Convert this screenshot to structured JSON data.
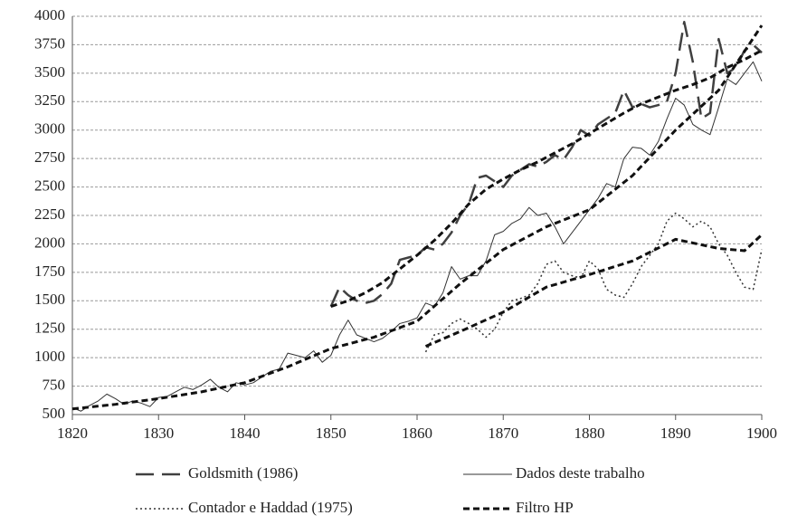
{
  "chart_data": {
    "type": "line",
    "xlim": [
      1820,
      1900
    ],
    "xticks": [
      1820,
      1830,
      1840,
      1850,
      1860,
      1870,
      1880,
      1890,
      1900
    ],
    "ylim": [
      500,
      4000
    ],
    "yticks": [
      500,
      750,
      1000,
      1250,
      1500,
      1750,
      2000,
      2250,
      2500,
      2750,
      3000,
      3250,
      3500,
      3750,
      4000
    ],
    "grid": true,
    "series": [
      {
        "name": "Goldsmith (1986)",
        "color": "#404040",
        "dash": "20 9",
        "width": 2.5,
        "x": [
          1850,
          1851,
          1852,
          1853,
          1854,
          1855,
          1856,
          1857,
          1858,
          1859,
          1860,
          1861,
          1862,
          1863,
          1864,
          1865,
          1866,
          1867,
          1868,
          1869,
          1870,
          1871,
          1872,
          1873,
          1874,
          1875,
          1876,
          1877,
          1878,
          1879,
          1880,
          1881,
          1882,
          1883,
          1884,
          1885,
          1886,
          1887,
          1888,
          1889,
          1890,
          1891,
          1892,
          1893,
          1894,
          1895,
          1896,
          1897,
          1898,
          1899,
          1900
        ],
        "values": [
          1450,
          1620,
          1550,
          1500,
          1480,
          1500,
          1560,
          1650,
          1860,
          1880,
          1900,
          1970,
          1950,
          2000,
          2100,
          2250,
          2350,
          2580,
          2600,
          2550,
          2500,
          2600,
          2650,
          2700,
          2680,
          2720,
          2780,
          2740,
          2850,
          3000,
          2950,
          3050,
          3100,
          3150,
          3350,
          3200,
          3230,
          3200,
          3220,
          3250,
          3500,
          3950,
          3600,
          3100,
          3150,
          3800,
          3500,
          3550,
          3700,
          3750,
          3680
        ]
      },
      {
        "name": "Dados deste trabalho",
        "color": "#333333",
        "dash": "none",
        "width": 1,
        "x": [
          1820,
          1821,
          1822,
          1823,
          1824,
          1825,
          1826,
          1827,
          1828,
          1829,
          1830,
          1831,
          1832,
          1833,
          1834,
          1835,
          1836,
          1837,
          1838,
          1839,
          1840,
          1841,
          1842,
          1843,
          1844,
          1845,
          1846,
          1847,
          1848,
          1849,
          1850,
          1851,
          1852,
          1853,
          1854,
          1855,
          1856,
          1857,
          1858,
          1859,
          1860,
          1861,
          1862,
          1863,
          1864,
          1865,
          1866,
          1867,
          1868,
          1869,
          1870,
          1871,
          1872,
          1873,
          1874,
          1875,
          1876,
          1877,
          1878,
          1879,
          1880,
          1881,
          1882,
          1883,
          1884,
          1885,
          1886,
          1887,
          1888,
          1889,
          1890,
          1891,
          1892,
          1893,
          1894,
          1895,
          1896,
          1897,
          1898,
          1899,
          1900
        ],
        "values": [
          560,
          530,
          580,
          620,
          680,
          640,
          590,
          620,
          600,
          570,
          650,
          660,
          700,
          740,
          720,
          760,
          810,
          740,
          700,
          780,
          760,
          780,
          830,
          880,
          900,
          1040,
          1020,
          1000,
          1060,
          960,
          1020,
          1200,
          1330,
          1200,
          1170,
          1140,
          1170,
          1230,
          1300,
          1320,
          1350,
          1480,
          1450,
          1570,
          1800,
          1690,
          1720,
          1720,
          1850,
          2080,
          2110,
          2180,
          2220,
          2320,
          2250,
          2270,
          2150,
          2000,
          2100,
          2200,
          2300,
          2400,
          2530,
          2500,
          2750,
          2850,
          2840,
          2780,
          2900,
          3100,
          3280,
          3220,
          3050,
          3000,
          2960,
          3200,
          3450,
          3400,
          3500,
          3600,
          3430
        ]
      },
      {
        "name": "Contador e Haddad (1975)",
        "color": "#333333",
        "dash": "2 3",
        "width": 1.5,
        "x": [
          1861,
          1862,
          1863,
          1864,
          1865,
          1866,
          1867,
          1868,
          1869,
          1870,
          1871,
          1872,
          1873,
          1874,
          1875,
          1876,
          1877,
          1878,
          1879,
          1880,
          1881,
          1882,
          1883,
          1884,
          1885,
          1886,
          1887,
          1888,
          1889,
          1890,
          1891,
          1892,
          1893,
          1894,
          1895,
          1896,
          1897,
          1898,
          1899,
          1900
        ],
        "values": [
          1050,
          1200,
          1220,
          1300,
          1340,
          1300,
          1250,
          1180,
          1250,
          1400,
          1500,
          1520,
          1550,
          1650,
          1820,
          1850,
          1750,
          1720,
          1700,
          1850,
          1780,
          1600,
          1550,
          1530,
          1650,
          1800,
          1900,
          2000,
          2200,
          2270,
          2220,
          2150,
          2200,
          2150,
          2000,
          1900,
          1750,
          1620,
          1600,
          1950
        ]
      },
      {
        "name": "Filtro HP",
        "color": "#111111",
        "dash": "7 4",
        "width": 3,
        "x": [
          1850,
          1852,
          1854,
          1856,
          1858,
          1860,
          1862,
          1864,
          1866,
          1868,
          1870,
          1872,
          1874,
          1876,
          1878,
          1880,
          1882,
          1884,
          1886,
          1888,
          1890,
          1892,
          1894,
          1896,
          1898,
          1900
        ],
        "values": [
          1450,
          1500,
          1570,
          1660,
          1780,
          1900,
          2030,
          2180,
          2350,
          2480,
          2570,
          2650,
          2720,
          2800,
          2880,
          2970,
          3060,
          3150,
          3230,
          3290,
          3350,
          3400,
          3460,
          3550,
          3620,
          3700
        ]
      },
      {
        "color": "#111111",
        "dash": "7 4",
        "width": 3,
        "x": [
          1820,
          1825,
          1830,
          1835,
          1840,
          1845,
          1850,
          1855,
          1860,
          1865,
          1870,
          1875,
          1880,
          1885,
          1890,
          1895,
          1900
        ],
        "values": [
          550,
          590,
          640,
          700,
          780,
          920,
          1080,
          1180,
          1320,
          1650,
          1950,
          2150,
          2300,
          2600,
          3000,
          3350,
          3920
        ]
      },
      {
        "color": "#111111",
        "dash": "7 4",
        "width": 3,
        "x": [
          1861,
          1865,
          1870,
          1875,
          1880,
          1885,
          1890,
          1895,
          1898,
          1900
        ],
        "values": [
          1100,
          1230,
          1400,
          1620,
          1730,
          1850,
          2040,
          1960,
          1940,
          2080
        ]
      }
    ]
  }
}
